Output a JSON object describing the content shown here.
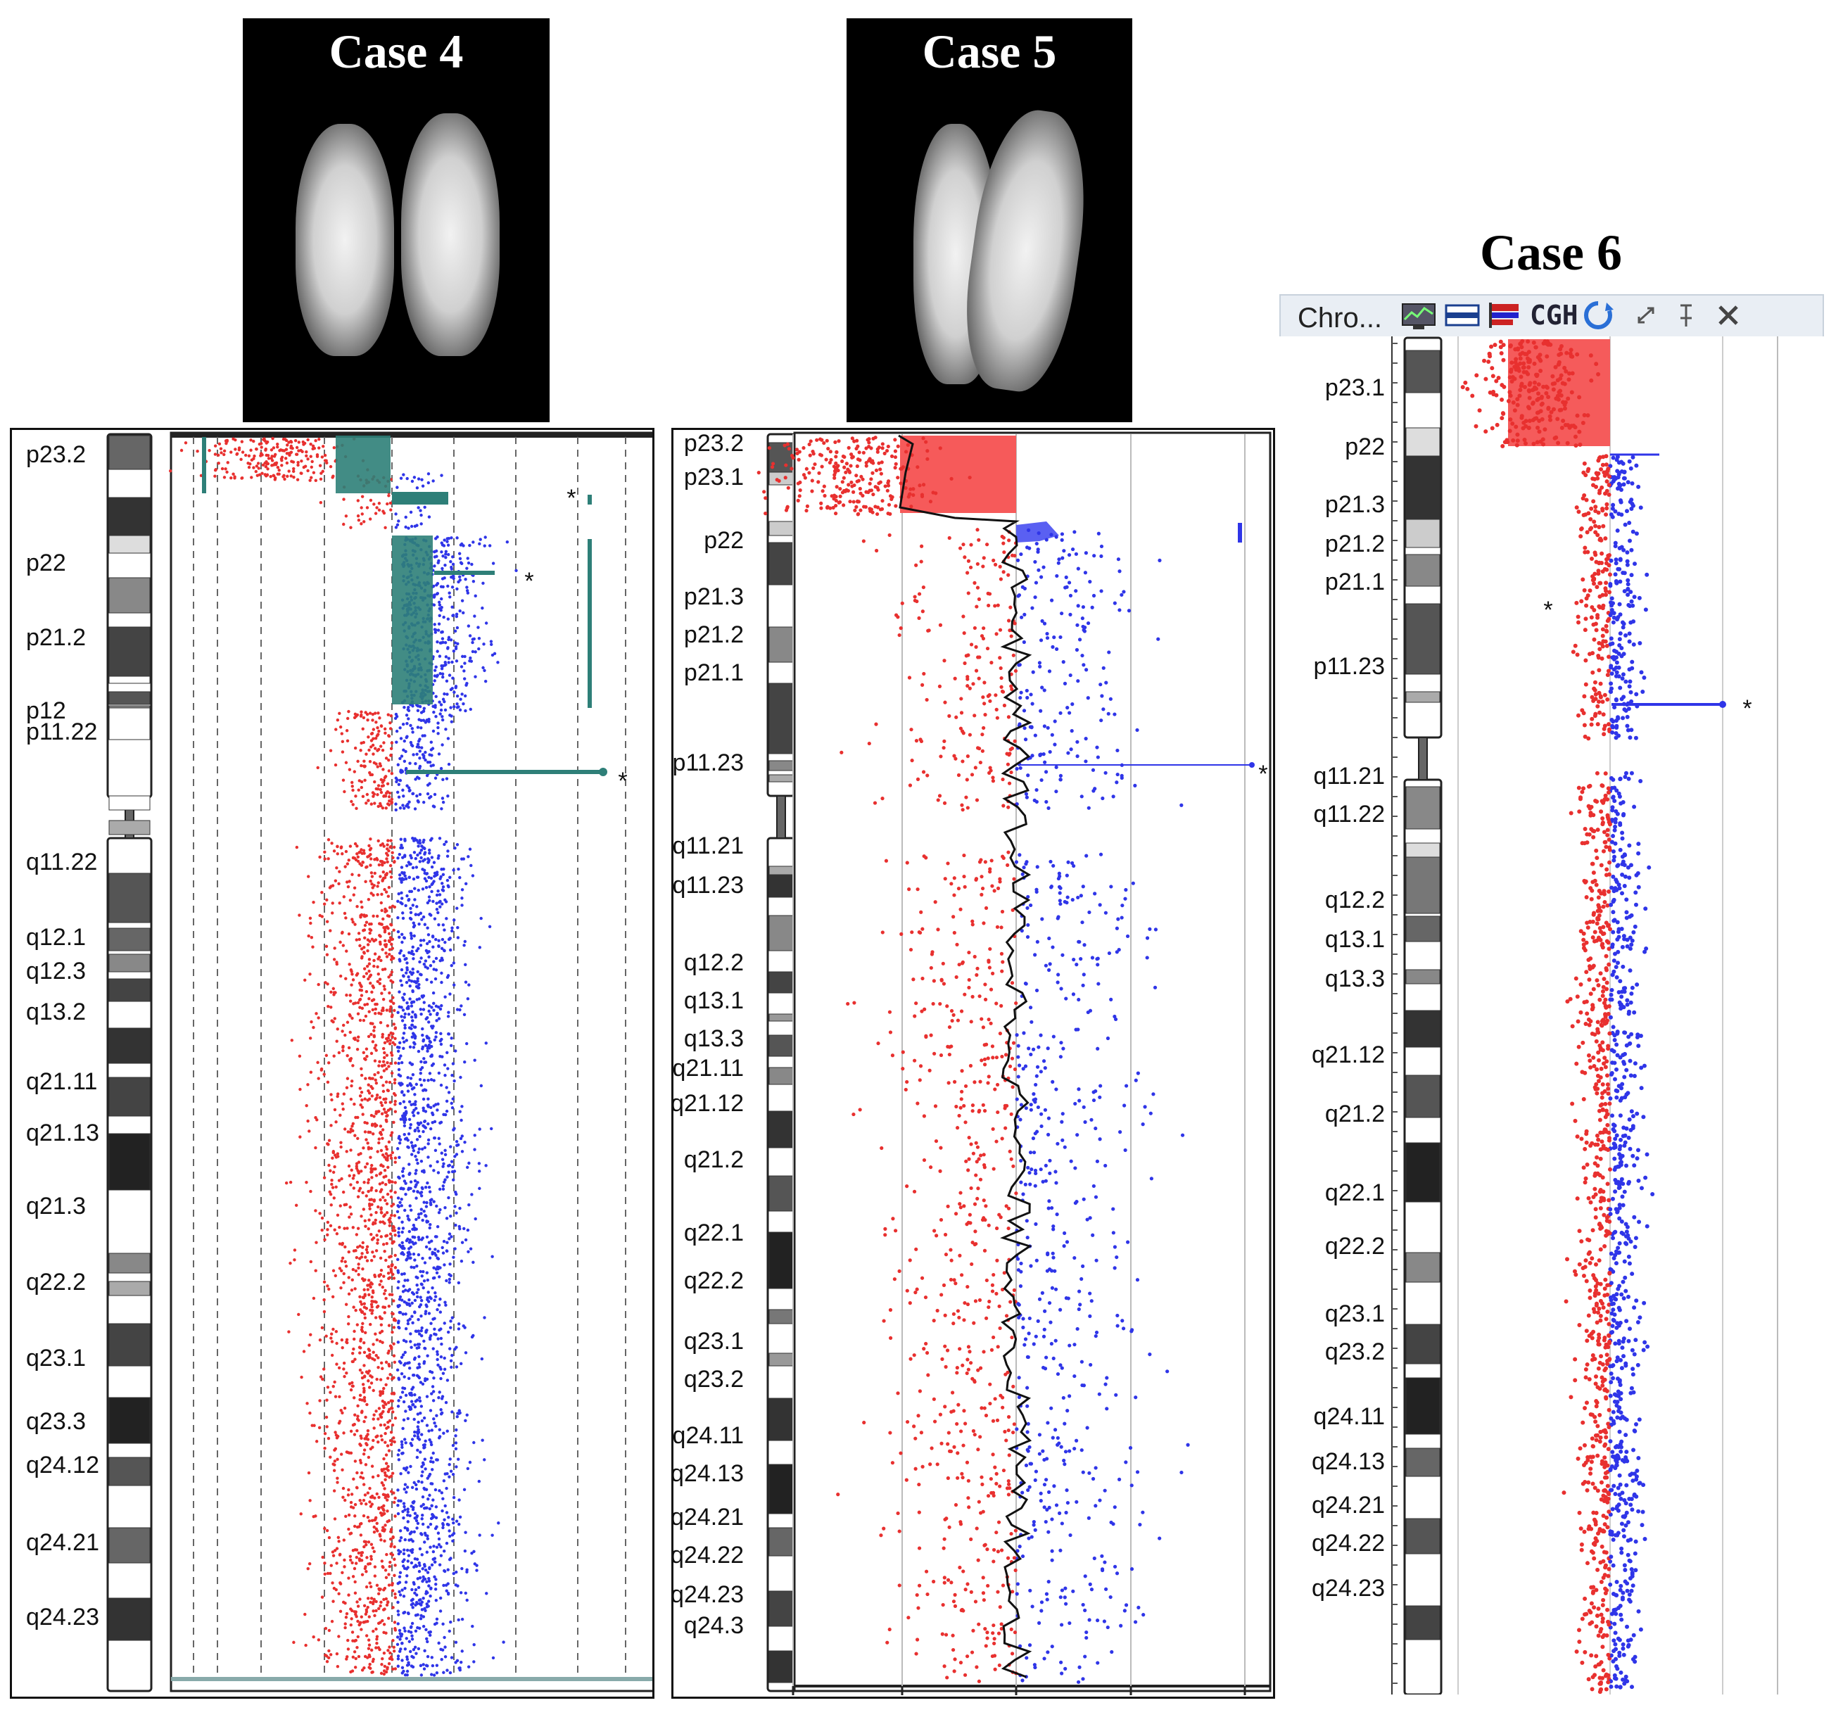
{
  "cases": [
    {
      "title": "Case 4"
    },
    {
      "title": "Case 5"
    },
    {
      "title": "Case 6"
    }
  ],
  "toolbar": {
    "label": "Chro...",
    "icons": [
      "chart-icon",
      "band-icon",
      "flag-icon",
      "cgh-icon",
      "refresh-icon",
      "expand-icon",
      "pin-icon",
      "close-icon"
    ],
    "cgh_text": "CGH"
  },
  "colors": {
    "loss": "#e8302f",
    "gain": "#2f35e8",
    "segment_case4": "#2e7f78",
    "segment_fill_case5_red": "#f65a5a",
    "segment_fill_case5_blue": "#5a60f2",
    "case6_red": "#f55b5b"
  },
  "marker": "*",
  "panel1_bands": [
    "p23.2",
    "p22",
    "p21.2",
    "p12",
    "p11.22",
    "q11.22",
    "q12.1",
    "q12.3",
    "q13.2",
    "q21.11",
    "q21.13",
    "q21.3",
    "q22.2",
    "q23.1",
    "q23.3",
    "q24.12",
    "q24.21",
    "q24.23"
  ],
  "panel2_bands": [
    "p23.2",
    "p23.1",
    "p22",
    "p21.3",
    "p21.2",
    "p21.1",
    "p11.23",
    "q11.21",
    "q11.23",
    "q12.2",
    "q13.1",
    "q13.3",
    "q21.11",
    "q21.12",
    "q21.2",
    "q22.1",
    "q22.2",
    "q23.1",
    "q23.2",
    "q24.11",
    "q24.13",
    "q24.21",
    "q24.22",
    "q24.23",
    "q24.3"
  ],
  "panel3_bands": [
    "p23.1",
    "p22",
    "p21.3",
    "p21.2",
    "p21.1",
    "p11.23",
    "q11.21",
    "q11.22",
    "q12.2",
    "q13.1",
    "q13.3",
    "q21.12",
    "q21.2",
    "q22.1",
    "q22.2",
    "q23.1",
    "q23.2",
    "q24.11",
    "q24.13",
    "q24.21",
    "q24.22",
    "q24.23"
  ]
}
